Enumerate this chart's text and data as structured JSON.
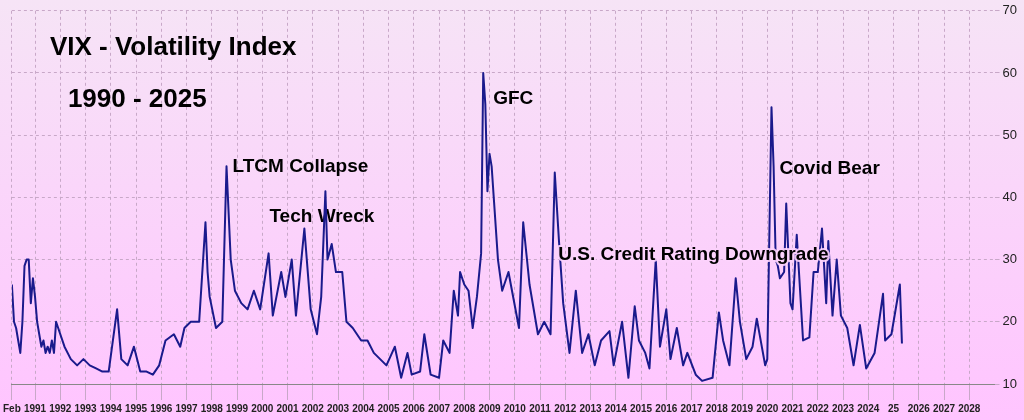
{
  "chart_data": {
    "type": "line",
    "title": "VIX - Volatility Index",
    "subtitle": "1990 - 2025",
    "x": [
      "1990-02",
      "1990-03",
      "1990-04",
      "1990-05",
      "1990-06",
      "1990-07",
      "1990-08",
      "1990-09",
      "1990-10",
      "1990-11",
      "1990-12",
      "1991-01",
      "1991-02",
      "1991-03",
      "1991-04",
      "1991-05",
      "1991-06",
      "1991-07",
      "1991-08",
      "1991-09",
      "1991-10",
      "1991-11",
      "1991-12",
      "1992-03",
      "1992-06",
      "1992-09",
      "1992-12",
      "1993-03",
      "1993-06",
      "1993-09",
      "1993-12",
      "1994-04",
      "1994-06",
      "1994-09",
      "1994-12",
      "1995-03",
      "1995-06",
      "1995-09",
      "1995-12",
      "1996-03",
      "1996-07",
      "1996-10",
      "1996-12",
      "1997-03",
      "1997-07",
      "1997-10",
      "1997-11",
      "1997-12",
      "1998-03",
      "1998-06",
      "1998-08",
      "1998-10",
      "1998-12",
      "1999-03",
      "1999-06",
      "1999-09",
      "1999-12",
      "2000-04",
      "2000-06",
      "2000-10",
      "2000-12",
      "2001-03",
      "2001-05",
      "2001-09",
      "2001-12",
      "2002-03",
      "2002-05",
      "2002-07",
      "2002-08",
      "2002-10",
      "2002-12",
      "2003-03",
      "2003-05",
      "2003-08",
      "2003-12",
      "2004-03",
      "2004-06",
      "2004-09",
      "2004-12",
      "2005-04",
      "2005-07",
      "2005-10",
      "2005-12",
      "2006-04",
      "2006-06",
      "2006-09",
      "2007-01",
      "2007-03",
      "2007-06",
      "2007-08",
      "2007-10",
      "2007-11",
      "2008-01",
      "2008-03",
      "2008-05",
      "2008-07",
      "2008-09",
      "2008-10",
      "2008-11",
      "2008-12",
      "2009-01",
      "2009-02",
      "2009-03",
      "2009-05",
      "2009-07",
      "2009-10",
      "2010-03",
      "2010-05",
      "2010-08",
      "2010-12",
      "2011-03",
      "2011-06",
      "2011-08",
      "2011-10",
      "2011-12",
      "2012-03",
      "2012-06",
      "2012-09",
      "2012-12",
      "2013-03",
      "2013-06",
      "2013-10",
      "2013-12",
      "2014-04",
      "2014-07",
      "2014-10",
      "2014-12",
      "2015-03",
      "2015-05",
      "2015-08",
      "2015-10",
      "2016-01",
      "2016-03",
      "2016-06",
      "2016-09",
      "2016-11",
      "2017-03",
      "2017-06",
      "2017-11",
      "2018-02",
      "2018-04",
      "2018-07",
      "2018-10",
      "2018-12",
      "2019-03",
      "2019-06",
      "2019-08",
      "2019-12",
      "2020-01",
      "2020-03",
      "2020-04",
      "2020-05",
      "2020-06",
      "2020-07",
      "2020-09",
      "2020-10",
      "2020-12",
      "2021-01",
      "2021-03",
      "2021-06",
      "2021-09",
      "2021-11",
      "2022-01",
      "2022-03",
      "2022-05",
      "2022-06",
      "2022-08",
      "2022-10",
      "2022-12",
      "2023-03",
      "2023-06",
      "2023-09",
      "2023-12",
      "2024-04",
      "2024-08",
      "2024-09",
      "2024-12",
      "2025-04",
      "2025-05"
    ],
    "series": [
      {
        "color": "#1a1a8c",
        "values": [
          26,
          20,
          19,
          17,
          15,
          20,
          29,
          30,
          30,
          23,
          27,
          24,
          20,
          18,
          16,
          17,
          15,
          16,
          15,
          17,
          15,
          20,
          19,
          16,
          14,
          13,
          14,
          13,
          12.5,
          12,
          12,
          22,
          14,
          13,
          16,
          12,
          12,
          11.5,
          13,
          17,
          18,
          16,
          19,
          20,
          20,
          36,
          28,
          24,
          19,
          20,
          45,
          30,
          25,
          23,
          22,
          25,
          22,
          31,
          21,
          28,
          24,
          30,
          21,
          35,
          22,
          18,
          24,
          41,
          30,
          32.5,
          28,
          28,
          20,
          19,
          17,
          17,
          15,
          14,
          13,
          16,
          11,
          15,
          11.5,
          12,
          18,
          11.5,
          11,
          17,
          15,
          25,
          21,
          28,
          26,
          25,
          19,
          24,
          31,
          60,
          55,
          41,
          47,
          45,
          40,
          30,
          25,
          28,
          19,
          36,
          26,
          18,
          20,
          18,
          44,
          33,
          23,
          15,
          25,
          15,
          18,
          13,
          17,
          18.5,
          13,
          20,
          11,
          22.5,
          17,
          15,
          12.5,
          30,
          16,
          22,
          14,
          19,
          13,
          15,
          11.5,
          10.5,
          11,
          21.5,
          17,
          13,
          27,
          20,
          14,
          16,
          20.5,
          13,
          14,
          54.5,
          45,
          30,
          29,
          27,
          28,
          39,
          23,
          22,
          34,
          17,
          17.5,
          28,
          28,
          35,
          23,
          33,
          21,
          30,
          21,
          19,
          13,
          19.5,
          12.5,
          15,
          24.5,
          17,
          18,
          26,
          16.5
        ]
      }
    ],
    "xlim": [
      "1990-02",
      "2029-01"
    ],
    "xticks": [
      {
        "value": "1990-02",
        "label": "Feb"
      },
      {
        "value": "1991-01",
        "label": "1991"
      },
      {
        "value": "1992-01",
        "label": "1992"
      },
      {
        "value": "1993-01",
        "label": "1993"
      },
      {
        "value": "1994-01",
        "label": "1994"
      },
      {
        "value": "1995-01",
        "label": "1995"
      },
      {
        "value": "1996-01",
        "label": "1996"
      },
      {
        "value": "1997-01",
        "label": "1997"
      },
      {
        "value": "1998-01",
        "label": "1998"
      },
      {
        "value": "1999-01",
        "label": "1999"
      },
      {
        "value": "2000-01",
        "label": "2000"
      },
      {
        "value": "2001-01",
        "label": "2001"
      },
      {
        "value": "2002-01",
        "label": "2002"
      },
      {
        "value": "2003-01",
        "label": "2003"
      },
      {
        "value": "2004-01",
        "label": "2004"
      },
      {
        "value": "2005-01",
        "label": "2005"
      },
      {
        "value": "2006-01",
        "label": "2006"
      },
      {
        "value": "2007-01",
        "label": "2007"
      },
      {
        "value": "2008-01",
        "label": "2008"
      },
      {
        "value": "2009-01",
        "label": "2009"
      },
      {
        "value": "2010-01",
        "label": "2010"
      },
      {
        "value": "2011-01",
        "label": "2011"
      },
      {
        "value": "2012-01",
        "label": "2012"
      },
      {
        "value": "2013-01",
        "label": "2013"
      },
      {
        "value": "2014-01",
        "label": "2014"
      },
      {
        "value": "2015-01",
        "label": "2015"
      },
      {
        "value": "2016-01",
        "label": "2016"
      },
      {
        "value": "2017-01",
        "label": "2017"
      },
      {
        "value": "2018-01",
        "label": "2018"
      },
      {
        "value": "2019-01",
        "label": "2019"
      },
      {
        "value": "2020-01",
        "label": "2020"
      },
      {
        "value": "2021-01",
        "label": "2021"
      },
      {
        "value": "2022-01",
        "label": "2022"
      },
      {
        "value": "2023-01",
        "label": "2023"
      },
      {
        "value": "2024-01",
        "label": "2024"
      },
      {
        "value": "2025-01",
        "label": "25"
      },
      {
        "value": "2026-01",
        "label": "2026"
      },
      {
        "value": "2027-01",
        "label": "2027"
      },
      {
        "value": "2028-01",
        "label": "2028"
      }
    ],
    "ylim": [
      10,
      70
    ],
    "yticks": [
      10,
      20,
      30,
      40,
      50,
      60,
      70
    ],
    "grid": true,
    "legend": false,
    "marker": "none",
    "line_style": "solid",
    "annotations": [
      {
        "text": "LTCM Collapse",
        "x": "1998-08",
        "y": 45
      },
      {
        "text": "Tech Wreck",
        "x": "2002-07",
        "y": 41
      },
      {
        "text": "GFC",
        "x": "2008-10",
        "y": 60
      },
      "U.S. Credit Rating Downgrade",
      {
        "text": "Covid Bear",
        "x": "2020-03",
        "y": 54.5
      }
    ]
  }
}
